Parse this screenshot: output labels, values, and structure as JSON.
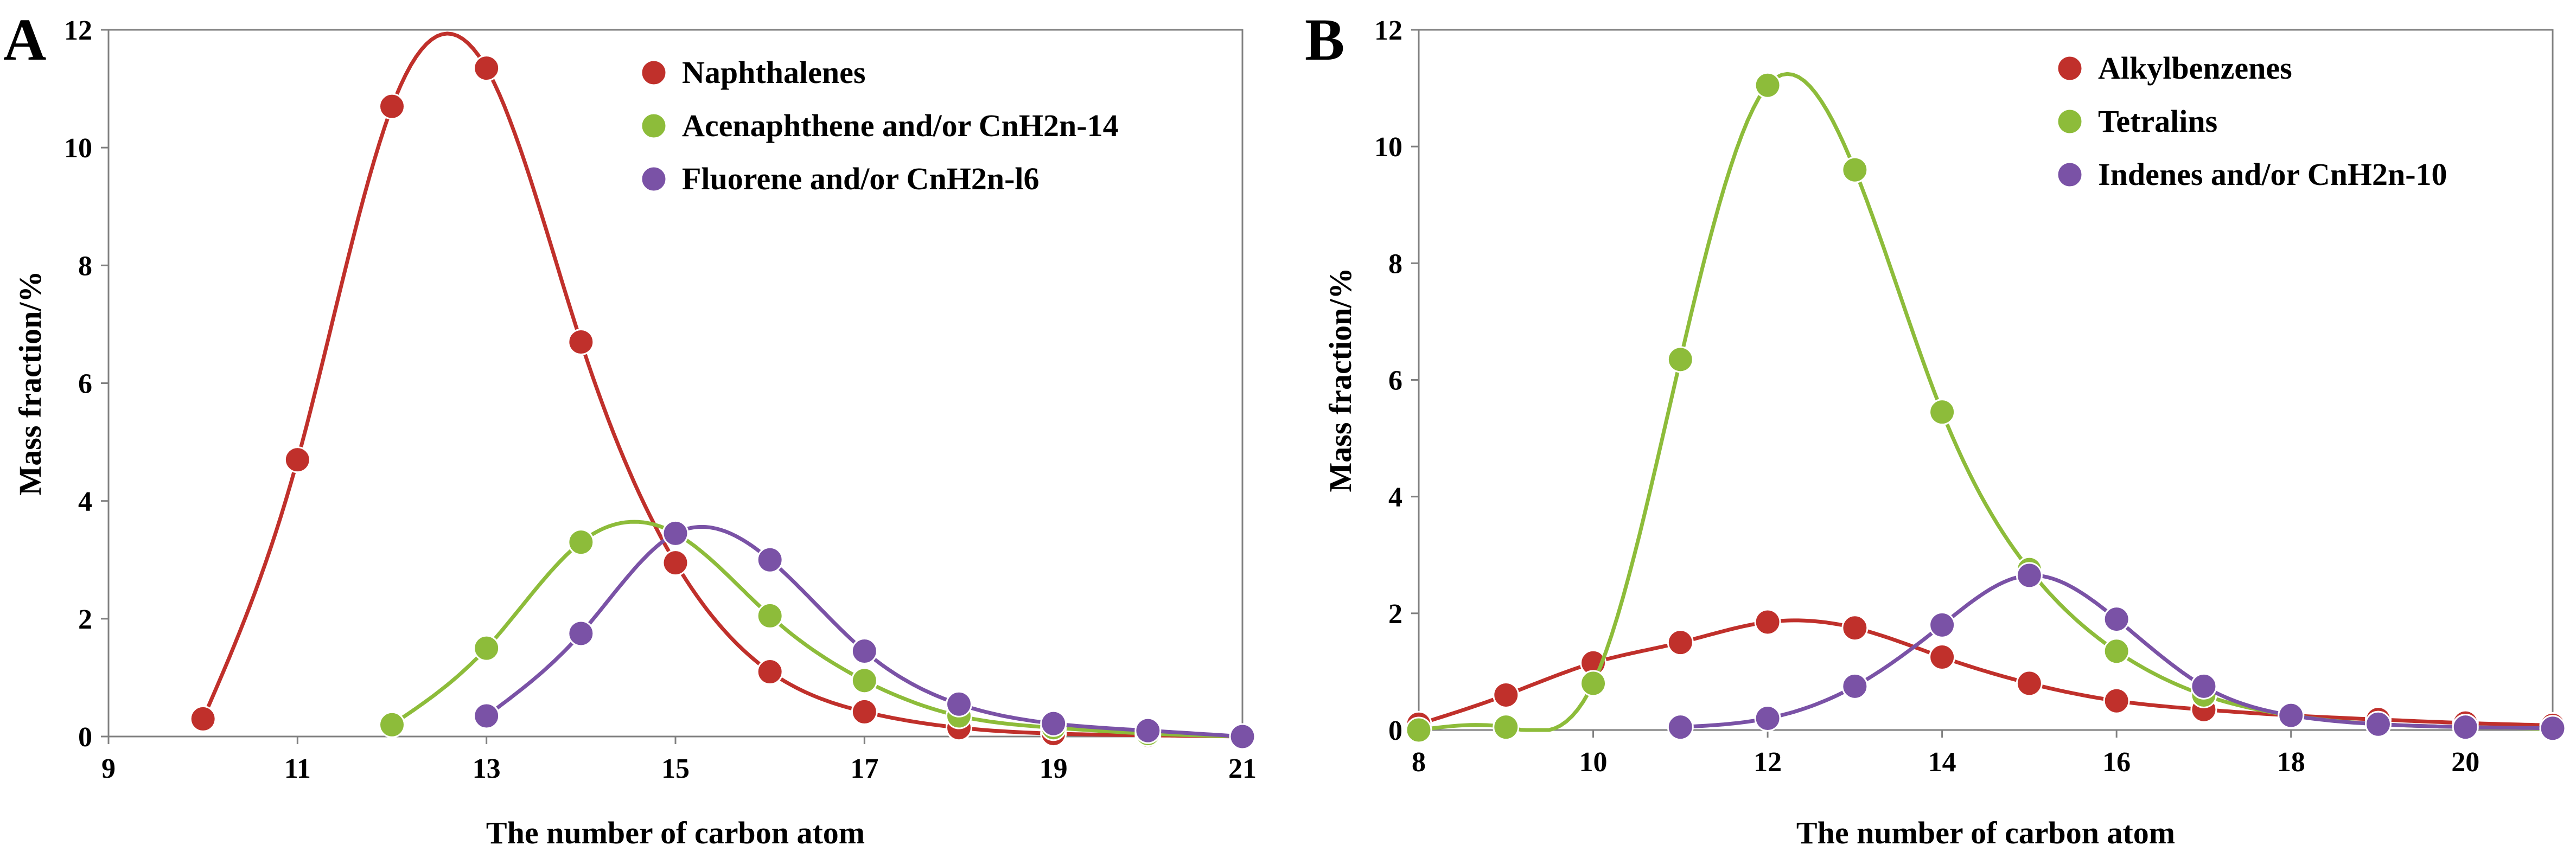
{
  "colors": {
    "red": "#c0302b",
    "green": "#8dbc3a",
    "purple": "#7a52a6",
    "axis": "#808080"
  },
  "chart_data": [
    {
      "type": "line",
      "panel_label": "A",
      "xlabel": "The number of carbon atom",
      "ylabel": "Mass fraction/%",
      "xlim": [
        9,
        21
      ],
      "ylim": [
        0,
        12
      ],
      "xticks": [
        9,
        11,
        13,
        15,
        17,
        19,
        21
      ],
      "yticks": [
        0,
        2,
        4,
        6,
        8,
        10,
        12
      ],
      "legend_position": "top-right",
      "grid": false,
      "series": [
        {
          "name": "Naphthalenes",
          "color": "#c0302b",
          "x": [
            10,
            11,
            12,
            13,
            14,
            15,
            16,
            17,
            18,
            19,
            20,
            21
          ],
          "y": [
            0.3,
            4.7,
            10.7,
            11.35,
            6.7,
            2.95,
            1.1,
            0.42,
            0.15,
            0.05,
            0.02,
            0.0
          ]
        },
        {
          "name": "Acenaphthene and/or CnH2n-14",
          "color": "#8dbc3a",
          "x": [
            12,
            13,
            14,
            15,
            16,
            17,
            18,
            19,
            20,
            21
          ],
          "y": [
            0.2,
            1.5,
            3.3,
            3.45,
            2.05,
            0.95,
            0.35,
            0.15,
            0.05,
            0.0
          ]
        },
        {
          "name": "Fluorene and/or CnH2n-l6",
          "color": "#7a52a6",
          "x": [
            13,
            14,
            15,
            16,
            17,
            18,
            19,
            20,
            21
          ],
          "y": [
            0.35,
            1.75,
            3.45,
            3.0,
            1.45,
            0.55,
            0.22,
            0.1,
            0.0
          ]
        }
      ]
    },
    {
      "type": "line",
      "panel_label": "B",
      "xlabel": "The number of carbon atom",
      "ylabel": "Mass fraction/%",
      "xlim": [
        8,
        21
      ],
      "ylim": [
        0,
        12
      ],
      "xticks": [
        8,
        10,
        12,
        14,
        16,
        18,
        20
      ],
      "yticks": [
        0,
        2,
        4,
        6,
        8,
        10,
        12
      ],
      "legend_position": "top-right",
      "grid": false,
      "series": [
        {
          "name": "Alkylbenzenes",
          "color": "#c0302b",
          "x": [
            8,
            9,
            10,
            11,
            12,
            13,
            14,
            15,
            16,
            17,
            18,
            19,
            20,
            21
          ],
          "y": [
            0.1,
            0.6,
            1.15,
            1.5,
            1.85,
            1.75,
            1.25,
            0.8,
            0.5,
            0.35,
            0.25,
            0.18,
            0.12,
            0.08
          ]
        },
        {
          "name": "Tetralins",
          "color": "#8dbc3a",
          "x": [
            8,
            9,
            10,
            11,
            12,
            13,
            14,
            15,
            16,
            17,
            18,
            19,
            20,
            21
          ],
          "y": [
            0.0,
            0.05,
            0.8,
            6.35,
            11.05,
            9.6,
            5.45,
            2.75,
            1.35,
            0.6,
            0.25,
            0.1,
            0.05,
            0.02
          ]
        },
        {
          "name": "Indenes and/or CnH2n-10",
          "color": "#7a52a6",
          "x": [
            11,
            12,
            13,
            14,
            15,
            16,
            17,
            18,
            19,
            20,
            21
          ],
          "y": [
            0.05,
            0.2,
            0.75,
            1.8,
            2.65,
            1.9,
            0.75,
            0.25,
            0.1,
            0.05,
            0.03
          ]
        }
      ]
    }
  ]
}
